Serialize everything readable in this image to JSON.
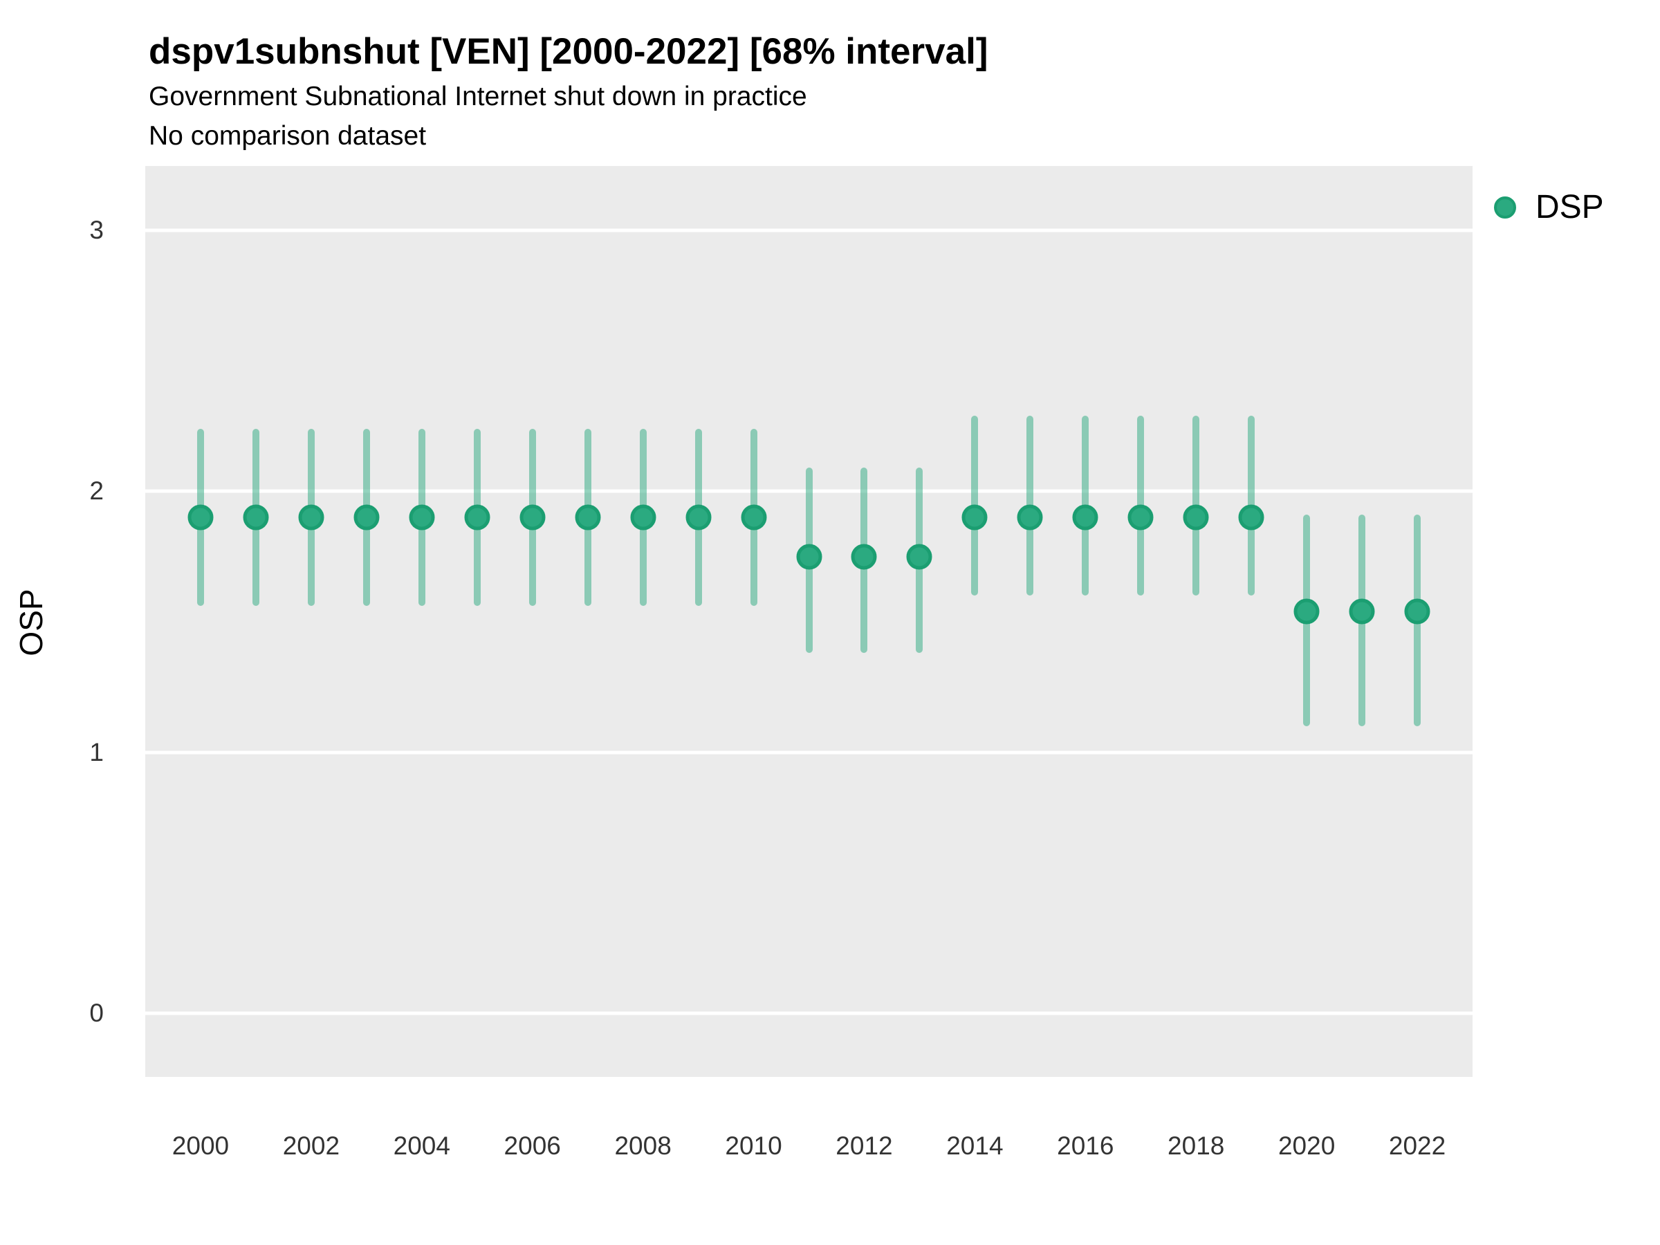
{
  "chart_data": {
    "type": "pointrange",
    "title": "dspv1subnshut [VEN] [2000-2022] [68% interval]",
    "subtitle": "Government Subnational Internet shut down in practice",
    "note": "No comparison dataset",
    "ylabel": "OSP",
    "xlabel": "",
    "interval": "68%",
    "legend_position": "right",
    "grid": "major-horizontal-only",
    "x_ticks": [
      2000,
      2002,
      2004,
      2006,
      2008,
      2010,
      2012,
      2014,
      2016,
      2018,
      2020,
      2022
    ],
    "y_ticks": [
      0,
      1,
      2,
      3
    ],
    "x_range": [
      1999.0,
      2023.0
    ],
    "y_range": [
      -0.244,
      3.247
    ],
    "colors": {
      "point_fill": "#2BAA80",
      "point_stroke": "#1B9E71",
      "interval_line": "rgba(43, 170, 128, 0.5)",
      "panel_bg": "#EBEBEB",
      "gridline": "#FFFFFF"
    },
    "series": [
      {
        "name": "DSP",
        "points": [
          {
            "year": 2000,
            "est": 1.9,
            "lo": 1.56,
            "hi": 2.24
          },
          {
            "year": 2001,
            "est": 1.9,
            "lo": 1.56,
            "hi": 2.24
          },
          {
            "year": 2002,
            "est": 1.9,
            "lo": 1.56,
            "hi": 2.24
          },
          {
            "year": 2003,
            "est": 1.9,
            "lo": 1.56,
            "hi": 2.24
          },
          {
            "year": 2004,
            "est": 1.9,
            "lo": 1.56,
            "hi": 2.24
          },
          {
            "year": 2005,
            "est": 1.9,
            "lo": 1.56,
            "hi": 2.24
          },
          {
            "year": 2006,
            "est": 1.9,
            "lo": 1.56,
            "hi": 2.24
          },
          {
            "year": 2007,
            "est": 1.9,
            "lo": 1.56,
            "hi": 2.24
          },
          {
            "year": 2008,
            "est": 1.9,
            "lo": 1.56,
            "hi": 2.24
          },
          {
            "year": 2009,
            "est": 1.9,
            "lo": 1.56,
            "hi": 2.24
          },
          {
            "year": 2010,
            "est": 1.9,
            "lo": 1.56,
            "hi": 2.24
          },
          {
            "year": 2011,
            "est": 1.75,
            "lo": 1.38,
            "hi": 2.09
          },
          {
            "year": 2012,
            "est": 1.75,
            "lo": 1.38,
            "hi": 2.09
          },
          {
            "year": 2013,
            "est": 1.75,
            "lo": 1.38,
            "hi": 2.09
          },
          {
            "year": 2014,
            "est": 1.9,
            "lo": 1.6,
            "hi": 2.29
          },
          {
            "year": 2015,
            "est": 1.9,
            "lo": 1.6,
            "hi": 2.29
          },
          {
            "year": 2016,
            "est": 1.9,
            "lo": 1.6,
            "hi": 2.29
          },
          {
            "year": 2017,
            "est": 1.9,
            "lo": 1.6,
            "hi": 2.29
          },
          {
            "year": 2018,
            "est": 1.9,
            "lo": 1.6,
            "hi": 2.29
          },
          {
            "year": 2019,
            "est": 1.9,
            "lo": 1.6,
            "hi": 2.29
          },
          {
            "year": 2020,
            "est": 1.54,
            "lo": 1.1,
            "hi": 1.91
          },
          {
            "year": 2021,
            "est": 1.54,
            "lo": 1.1,
            "hi": 1.91
          },
          {
            "year": 2022,
            "est": 1.54,
            "lo": 1.1,
            "hi": 1.91
          }
        ]
      }
    ],
    "legend": {
      "label": "DSP"
    }
  }
}
